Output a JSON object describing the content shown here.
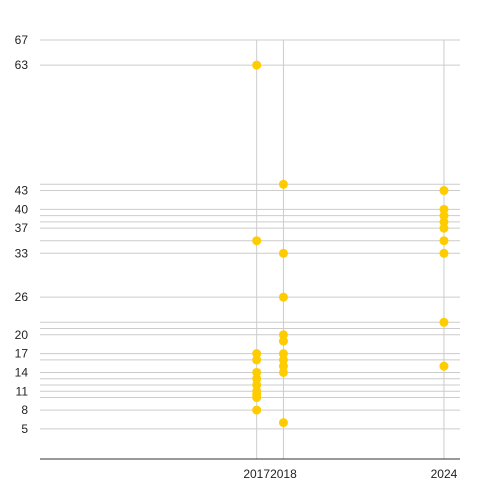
{
  "chart_data": {
    "type": "scatter",
    "title": "",
    "xlabel": "",
    "ylabel": "",
    "x_ticks": [
      2017,
      2018,
      2024
    ],
    "y_ticks": [
      5,
      8,
      11,
      14,
      17,
      20,
      26,
      33,
      37,
      40,
      43,
      63,
      67
    ],
    "x_range": [
      2008.9,
      2024.6
    ],
    "y_range": [
      0.2,
      67
    ],
    "gridlines_y": [
      5,
      8,
      10,
      11,
      12,
      13,
      14,
      16,
      17,
      20,
      21,
      22,
      26,
      33,
      35,
      37,
      38,
      39,
      40,
      43,
      44,
      63,
      67
    ],
    "grid": true,
    "legend": "none",
    "point_color": "#ffcc00",
    "axis_color": "#333333",
    "grid_color": "#cccccc",
    "series": [
      {
        "points": [
          [
            2017,
            63
          ],
          [
            2017,
            35
          ],
          [
            2017,
            17
          ],
          [
            2017,
            16
          ],
          [
            2017,
            14
          ],
          [
            2017,
            13
          ],
          [
            2017,
            12
          ],
          [
            2017,
            11
          ],
          [
            2017,
            10.5
          ],
          [
            2017,
            10
          ],
          [
            2017,
            8
          ],
          [
            2018,
            44
          ],
          [
            2018,
            33
          ],
          [
            2018,
            26
          ],
          [
            2018,
            20
          ],
          [
            2018,
            19
          ],
          [
            2018,
            17
          ],
          [
            2018,
            16
          ],
          [
            2018,
            15
          ],
          [
            2018,
            14
          ],
          [
            2018,
            6
          ],
          [
            2024,
            43
          ],
          [
            2024,
            40
          ],
          [
            2024,
            39
          ],
          [
            2024,
            38
          ],
          [
            2024,
            37
          ],
          [
            2024,
            35
          ],
          [
            2024,
            33
          ],
          [
            2024,
            22
          ],
          [
            2024,
            15
          ]
        ]
      }
    ]
  }
}
